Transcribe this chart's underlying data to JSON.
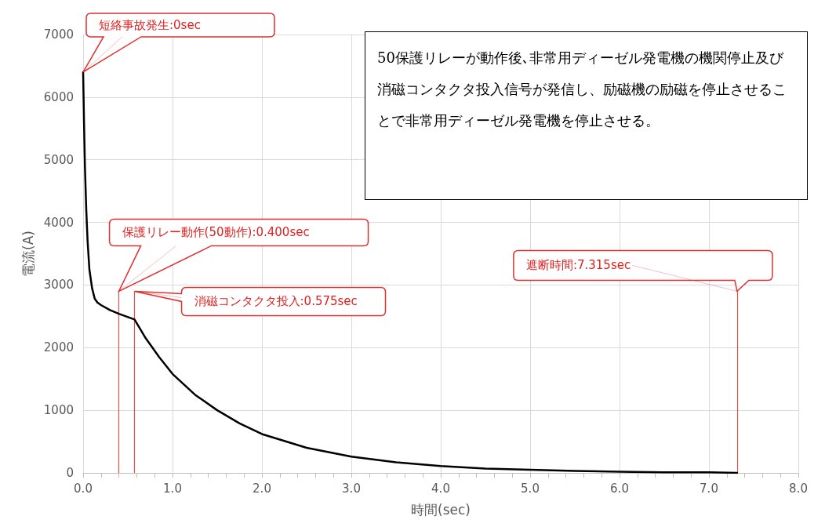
{
  "chart_data": {
    "type": "line",
    "xlabel": "時間(sec)",
    "ylabel": "電流(A)",
    "series": [
      {
        "color": "#000000",
        "x": [
          0,
          0.01,
          0.02,
          0.035,
          0.05,
          0.07,
          0.1,
          0.13,
          0.16,
          0.2,
          0.3,
          0.4,
          0.575,
          0.7,
          0.85,
          1.0,
          1.25,
          1.5,
          1.75,
          2.0,
          2.5,
          3.0,
          3.5,
          4.0,
          4.5,
          5.0,
          5.5,
          6.0,
          6.5,
          7.0,
          7.315
        ],
        "values": [
          6400,
          5600,
          4900,
          4200,
          3700,
          3250,
          2950,
          2780,
          2720,
          2680,
          2600,
          2540,
          2450,
          2150,
          1850,
          1580,
          1250,
          1000,
          790,
          620,
          400,
          260,
          170,
          110,
          70,
          50,
          30,
          20,
          10,
          10,
          0
        ]
      }
    ],
    "xlim": [
      0,
      8
    ],
    "ylim": [
      0,
      7000
    ],
    "xticks": [
      {
        "value": 0,
        "label": "0.0"
      },
      {
        "value": 1,
        "label": "1.0"
      },
      {
        "value": 2,
        "label": "2.0"
      },
      {
        "value": 3,
        "label": "3.0"
      },
      {
        "value": 4,
        "label": "4.0"
      },
      {
        "value": 5,
        "label": "5.0"
      },
      {
        "value": 6,
        "label": "6.0"
      },
      {
        "value": 7,
        "label": "7.0"
      },
      {
        "value": 8,
        "label": "8.0"
      }
    ],
    "yticks": [
      0,
      1000,
      2000,
      3000,
      4000,
      5000,
      6000,
      7000
    ],
    "grid": true,
    "marker": "none",
    "line_style": "solid",
    "ref_lines": [
      {
        "axis": "x",
        "value": 0.4,
        "color": "#d9534f"
      },
      {
        "axis": "x",
        "value": 0.575,
        "color": "#d9534f"
      },
      {
        "axis": "x",
        "value": 7.315,
        "color": "#d9534f"
      }
    ],
    "annotations": [
      {
        "text": "短絡事故発生:0sec",
        "x": 0,
        "y": 6400
      },
      {
        "text": "保護リレー動作(50動作):0.400sec",
        "x": 0.4,
        "y": 2900
      },
      {
        "text": "消磁コンタクタ投入:0.575sec",
        "x": 0.575,
        "y": 2900
      },
      {
        "text": "遮断時間:7.315sec",
        "x": 7.315,
        "y": 2900
      },
      "50保護リレーが動作後､非常用ディーゼル発電機の機関停止及び消磁コンタクタ投入信号が発信し、励磁機の励磁を停止させることで非常用ディーゼル発電機を停止させる。"
    ]
  }
}
